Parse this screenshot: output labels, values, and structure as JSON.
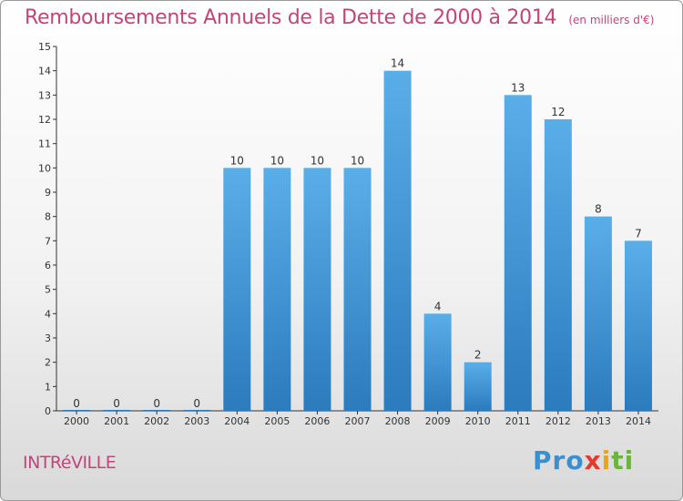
{
  "header": {
    "title": "Remboursements Annuels de la Dette de 2000 à 2014",
    "subtitle": "(en milliers d'€)"
  },
  "footer": {
    "commune": "INTRéVILLE",
    "logo": [
      "Pro",
      "x",
      "i",
      "ti"
    ]
  },
  "colors": {
    "bar_top": "#5aaee8",
    "bar_bottom": "#2b7bbd",
    "accent": "#c2457a"
  },
  "chart_data": {
    "type": "bar",
    "categories": [
      "2000",
      "2001",
      "2002",
      "2003",
      "2004",
      "2005",
      "2006",
      "2007",
      "2008",
      "2009",
      "2010",
      "2011",
      "2012",
      "2013",
      "2014"
    ],
    "values": [
      0,
      0,
      0,
      0,
      10,
      10,
      10,
      10,
      14,
      4,
      2,
      13,
      12,
      8,
      7
    ],
    "value_labels": [
      "0",
      "0",
      "0",
      "0",
      "10",
      "10",
      "10",
      "10",
      "14",
      "4",
      "2",
      "13",
      "12",
      "8",
      "7"
    ],
    "y_ticks": [
      "0",
      "1",
      "2",
      "3",
      "4",
      "5",
      "6",
      "7",
      "8",
      "9",
      "10",
      "11",
      "12",
      "13",
      "14",
      "15"
    ],
    "ylim": [
      0,
      15
    ],
    "grid": false
  }
}
